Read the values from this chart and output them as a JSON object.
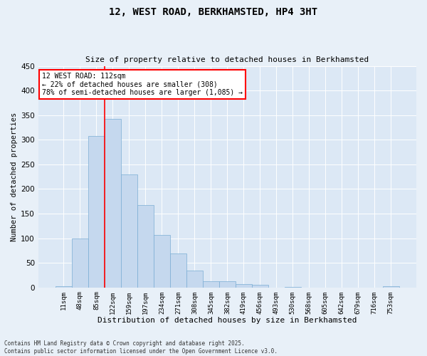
{
  "title1": "12, WEST ROAD, BERKHAMSTED, HP4 3HT",
  "title2": "Size of property relative to detached houses in Berkhamsted",
  "xlabel": "Distribution of detached houses by size in Berkhamsted",
  "ylabel": "Number of detached properties",
  "bar_labels": [
    "11sqm",
    "48sqm",
    "85sqm",
    "122sqm",
    "159sqm",
    "197sqm",
    "234sqm",
    "271sqm",
    "308sqm",
    "345sqm",
    "382sqm",
    "419sqm",
    "456sqm",
    "493sqm",
    "530sqm",
    "568sqm",
    "605sqm",
    "642sqm",
    "679sqm",
    "716sqm",
    "753sqm"
  ],
  "bar_values": [
    3,
    100,
    307,
    342,
    229,
    167,
    106,
    69,
    35,
    13,
    12,
    7,
    5,
    0,
    1,
    0,
    0,
    0,
    0,
    0,
    2
  ],
  "bar_color": "#c5d8ee",
  "bar_edge_color": "#7aadd4",
  "ylim": [
    0,
    450
  ],
  "yticks": [
    0,
    50,
    100,
    150,
    200,
    250,
    300,
    350,
    400,
    450
  ],
  "vline_color": "red",
  "vline_x_index": 2.5,
  "annotation_text": "12 WEST ROAD: 112sqm\n← 22% of detached houses are smaller (308)\n78% of semi-detached houses are larger (1,085) →",
  "annotation_box_color": "white",
  "annotation_edge_color": "red",
  "footnote1": "Contains HM Land Registry data © Crown copyright and database right 2025.",
  "footnote2": "Contains public sector information licensed under the Open Government Licence v3.0.",
  "bg_color": "#e8f0f8",
  "plot_bg_color": "#dce8f5"
}
